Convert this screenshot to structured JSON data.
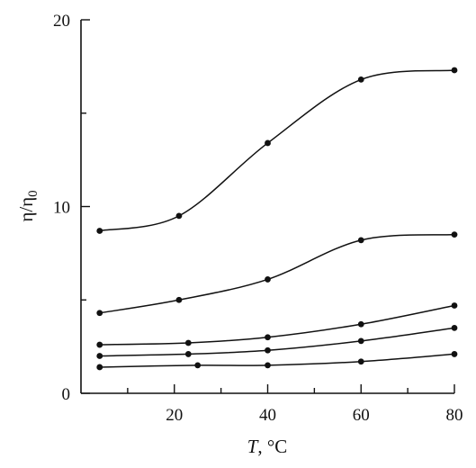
{
  "chart_data": {
    "type": "line",
    "title": "",
    "xlabel": "T, °C",
    "xlabel_italic_part": "T",
    "xlabel_rest": ", °C",
    "ylabel": "η/η0",
    "ylabel_main": "η/η",
    "ylabel_sub": "0",
    "xlim": [
      0,
      80
    ],
    "ylim": [
      0,
      20
    ],
    "x_ticks_major": [
      20,
      40,
      60,
      80
    ],
    "x_ticks_minor": [
      10,
      30,
      50,
      70
    ],
    "y_ticks_major": [
      0,
      10,
      20
    ],
    "y_ticks_minor": [
      5,
      15
    ],
    "x_tick_labels": [
      "20",
      "40",
      "60",
      "80"
    ],
    "y_tick_labels": [
      "0",
      "10",
      "20"
    ],
    "grid": false,
    "series": [
      {
        "values": [
          [
            4,
            8.7
          ],
          [
            21,
            9.5
          ],
          [
            40,
            13.4
          ],
          [
            60,
            16.8
          ],
          [
            80,
            17.3
          ]
        ]
      },
      {
        "values": [
          [
            4,
            4.3
          ],
          [
            21,
            5.0
          ],
          [
            40,
            6.1
          ],
          [
            60,
            8.2
          ],
          [
            80,
            8.5
          ]
        ]
      },
      {
        "values": [
          [
            4,
            2.6
          ],
          [
            23,
            2.7
          ],
          [
            40,
            3.0
          ],
          [
            60,
            3.7
          ],
          [
            80,
            4.7
          ]
        ]
      },
      {
        "values": [
          [
            4,
            2.0
          ],
          [
            23,
            2.1
          ],
          [
            40,
            2.3
          ],
          [
            60,
            2.8
          ],
          [
            80,
            3.5
          ]
        ]
      },
      {
        "values": [
          [
            4,
            1.4
          ],
          [
            25,
            1.5
          ],
          [
            40,
            1.5
          ],
          [
            60,
            1.7
          ],
          [
            80,
            2.1
          ]
        ]
      }
    ]
  }
}
